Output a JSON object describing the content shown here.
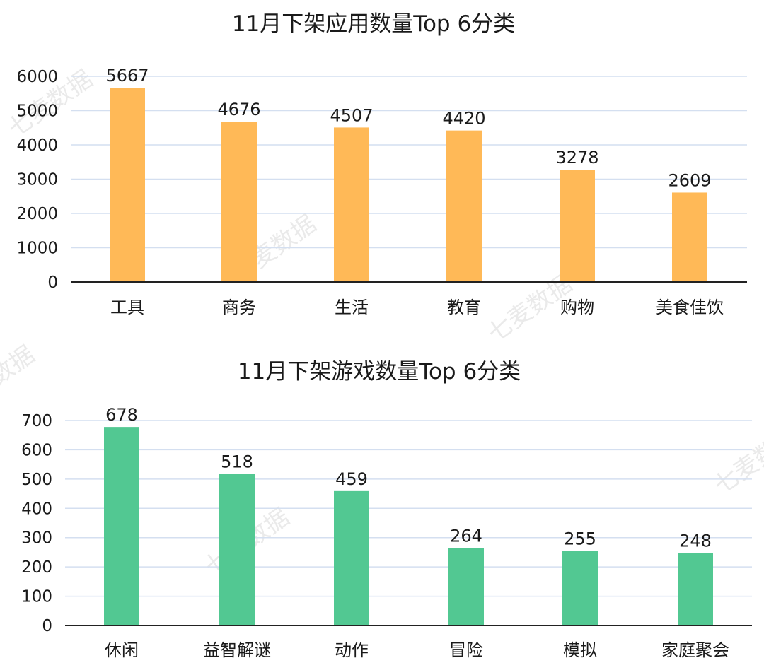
{
  "watermark_text": "七麦数据",
  "colors": {
    "apps_bar": "#FFB957",
    "games_bar": "#52C892"
  },
  "chart_data": [
    {
      "type": "bar",
      "title": "11月下架应用数量Top 6分类",
      "categories": [
        "工具",
        "商务",
        "生活",
        "教育",
        "购物",
        "美食佳饮"
      ],
      "values": [
        5667,
        4676,
        4507,
        4420,
        3278,
        2609
      ],
      "data_labels": [
        "5667",
        "4676",
        "4507",
        "4420",
        "3278",
        "2609"
      ],
      "yticks": [
        "0",
        "1000",
        "2000",
        "3000",
        "4000",
        "5000",
        "6000"
      ],
      "ylim": [
        0,
        6000
      ],
      "grid": true,
      "legend": "none"
    },
    {
      "type": "bar",
      "title": "11月下架游戏数量Top 6分类",
      "categories": [
        "休闲",
        "益智解谜",
        "动作",
        "冒险",
        "模拟",
        "家庭聚会"
      ],
      "values": [
        678,
        518,
        459,
        264,
        255,
        248
      ],
      "data_labels": [
        "678",
        "518",
        "459",
        "264",
        "255",
        "248"
      ],
      "yticks": [
        "0",
        "100",
        "200",
        "300",
        "400",
        "500",
        "600",
        "700"
      ],
      "ylim": [
        0,
        700
      ],
      "grid": true,
      "legend": "none"
    }
  ]
}
